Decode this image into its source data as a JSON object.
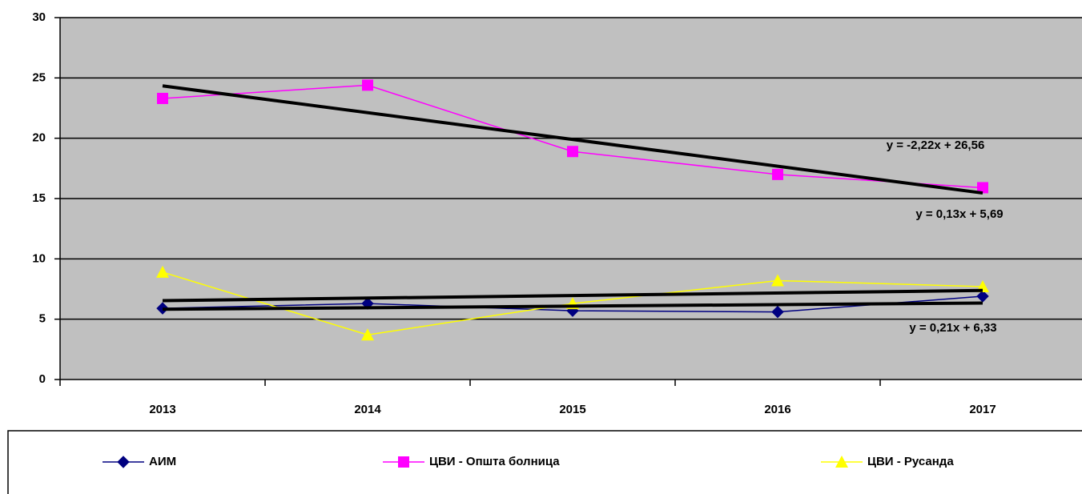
{
  "chart_data": {
    "type": "line",
    "categories": [
      "2013",
      "2014",
      "2015",
      "2016",
      "2017"
    ],
    "series": [
      {
        "name": "АИМ",
        "color": "#000080",
        "marker": "diamond",
        "values": [
          5.9,
          6.3,
          5.7,
          5.6,
          6.9
        ]
      },
      {
        "name": "ЦВИ - Општа болница",
        "color": "#ff00ff",
        "marker": "square",
        "values": [
          23.3,
          24.4,
          18.9,
          17.0,
          15.9
        ]
      },
      {
        "name": "ЦВИ - Русанда",
        "color": "#ffff00",
        "marker": "triangle",
        "values": [
          8.9,
          3.7,
          6.3,
          8.2,
          7.7
        ]
      }
    ],
    "trendlines": [
      {
        "slope": -2.22,
        "intercept": 26.56,
        "label": "y = -2,22x + 26,56"
      },
      {
        "slope": 0.13,
        "intercept": 5.69,
        "label": "y = 0,13x + 5,69"
      },
      {
        "slope": 0.21,
        "intercept": 6.33,
        "label": "y = 0,21x + 6,33"
      }
    ],
    "ylim": [
      0,
      30
    ],
    "yticks": [
      0,
      5,
      10,
      15,
      20,
      25,
      30
    ],
    "grid": true,
    "legend": "bottom"
  }
}
